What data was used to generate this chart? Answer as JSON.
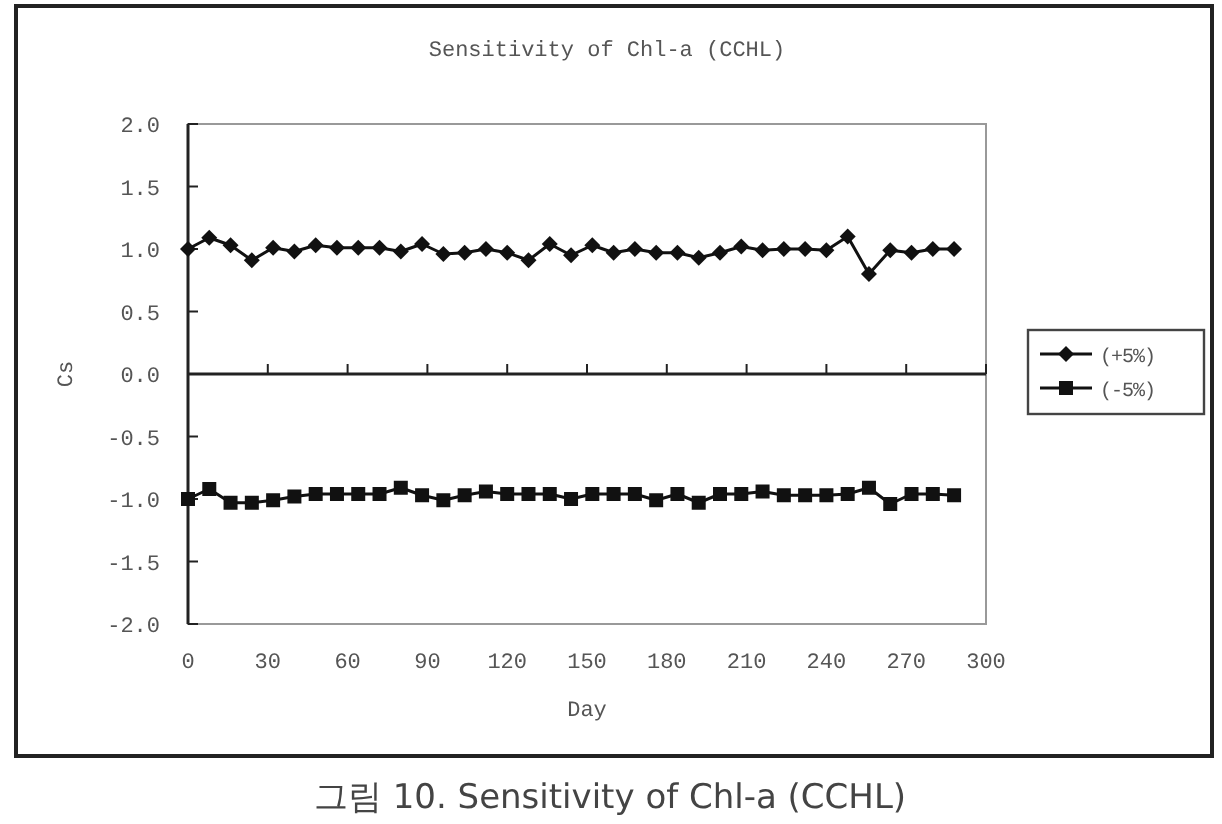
{
  "chart_data": {
    "type": "line",
    "title": "Sensitivity of Chl-a (CCHL)",
    "xlabel": "Day",
    "ylabel": "Cs",
    "x": [
      0,
      8,
      16,
      24,
      32,
      40,
      48,
      56,
      64,
      72,
      80,
      88,
      96,
      104,
      112,
      120,
      128,
      136,
      144,
      152,
      160,
      168,
      176,
      184,
      192,
      200,
      208,
      216,
      224,
      232,
      240,
      248,
      256,
      264,
      272,
      280,
      288
    ],
    "series": [
      {
        "name": "(+5%)",
        "color": "#111111",
        "marker": "diamond",
        "values": [
          1.0,
          1.09,
          1.03,
          0.91,
          1.01,
          0.98,
          1.03,
          1.01,
          1.01,
          1.01,
          0.98,
          1.04,
          0.96,
          0.97,
          1.0,
          0.97,
          0.91,
          1.04,
          0.95,
          1.03,
          0.97,
          1.0,
          0.97,
          0.97,
          0.93,
          0.97,
          1.02,
          0.99,
          1.0,
          1.0,
          0.99,
          1.1,
          0.8,
          0.99,
          0.97,
          1.0,
          1.0
        ]
      },
      {
        "name": "(-5%)",
        "color": "#111111",
        "marker": "square",
        "values": [
          -1.0,
          -0.92,
          -1.03,
          -1.03,
          -1.01,
          -0.98,
          -0.96,
          -0.96,
          -0.96,
          -0.96,
          -0.91,
          -0.97,
          -1.01,
          -0.97,
          -0.94,
          -0.96,
          -0.96,
          -0.96,
          -1.0,
          -0.96,
          -0.96,
          -0.96,
          -1.01,
          -0.96,
          -1.03,
          -0.96,
          -0.96,
          -0.94,
          -0.97,
          -0.97,
          -0.97,
          -0.96,
          -0.91,
          -1.04,
          -0.96,
          -0.96,
          -0.97
        ]
      }
    ],
    "xlim": [
      0,
      300
    ],
    "xticks": [
      0,
      30,
      60,
      90,
      120,
      150,
      180,
      210,
      240,
      270,
      300
    ],
    "ylim": [
      -2.0,
      2.0
    ],
    "yticks": [
      {
        "value": -2,
        "label": "-2.0"
      },
      {
        "value": -1.5,
        "label": "-1.5"
      },
      {
        "value": -1,
        "label": "-1.0"
      },
      {
        "value": -0.5,
        "label": "-0.5"
      },
      {
        "value": 0,
        "label": "0.0"
      },
      {
        "value": 0.5,
        "label": "0.5"
      },
      {
        "value": 1,
        "label": "1.0"
      },
      {
        "value": 1.5,
        "label": "1.5"
      },
      {
        "value": 2,
        "label": "2.0"
      }
    ],
    "legend": "right",
    "annotations": [
      "그림 10. Sensitivity of Chl-a (CCHL)"
    ]
  }
}
